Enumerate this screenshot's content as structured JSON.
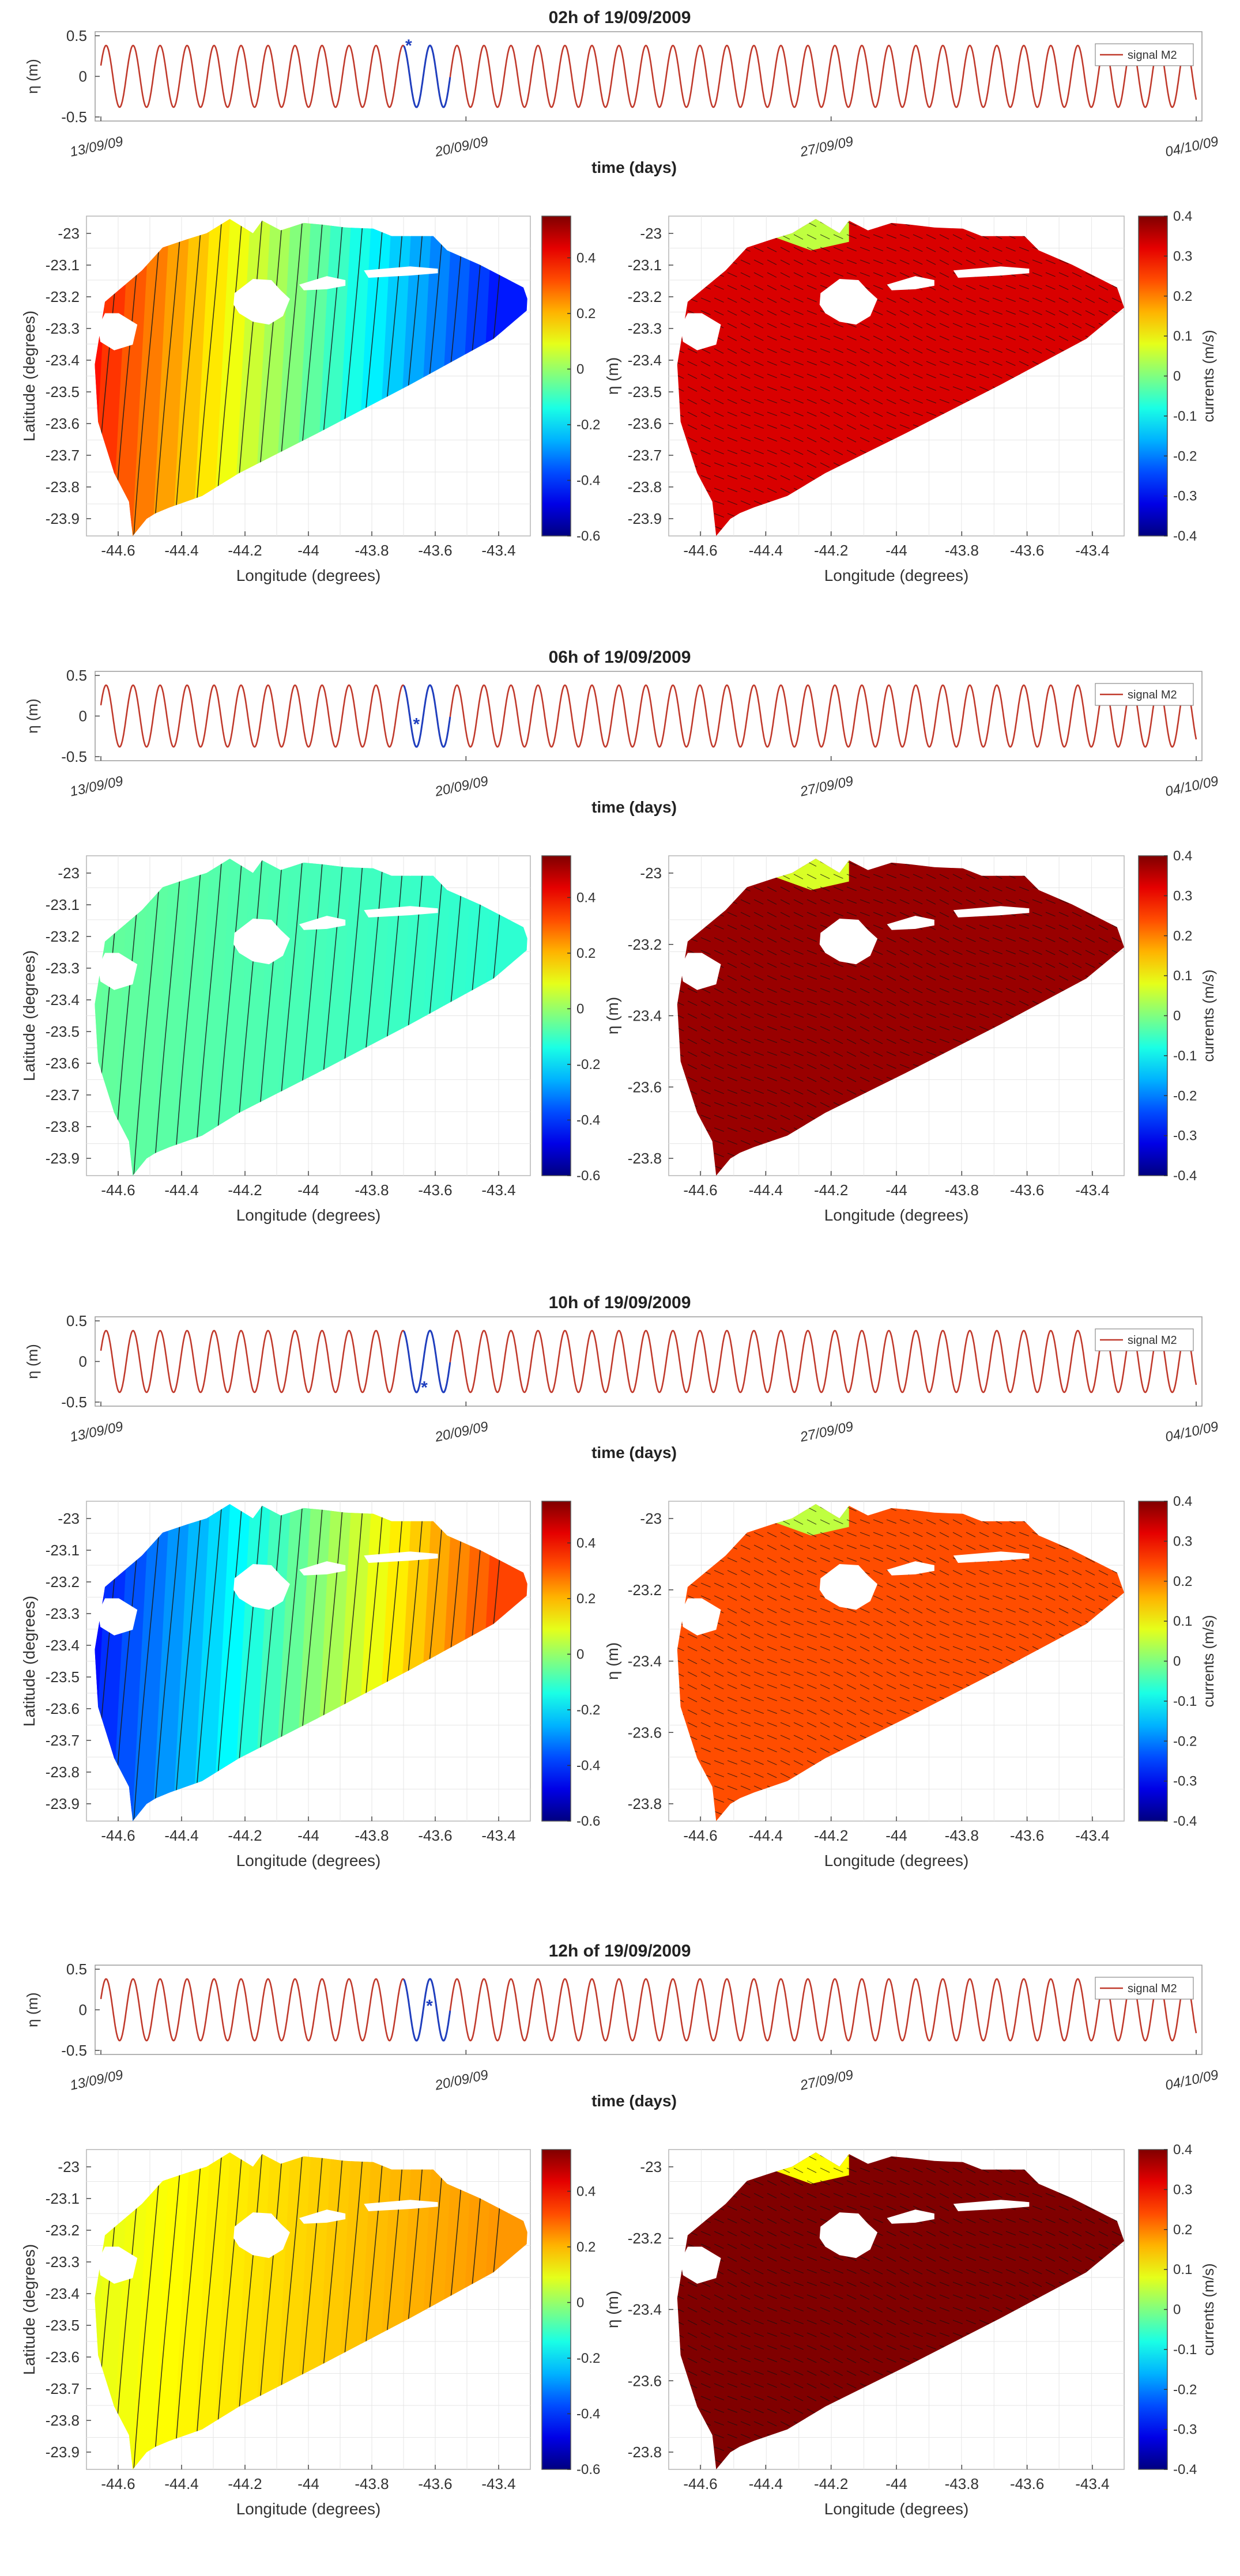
{
  "chart_data": [
    {
      "type": "line",
      "title": "02h of 19/09/2009",
      "ylabel": "η (m)",
      "xlabel": "time (days)",
      "yticks": [
        "0.5",
        "0",
        "-0.5"
      ],
      "ylim": [
        -0.55,
        0.55
      ],
      "xticks": [
        "13/09/09",
        "20/09/09",
        "27/09/09",
        "04/10/09"
      ],
      "xlim_days": [
        0,
        21
      ],
      "series": [
        {
          "name": "signal M2",
          "amplitude": 0.38,
          "period_days": 0.5175,
          "color": "#c0392b"
        }
      ],
      "highlight": {
        "start_days": 5.8,
        "end_days": 6.7,
        "color": "#1f3fbf"
      },
      "marker": {
        "time_days": 5.9,
        "value": 0.38
      },
      "colorbar_left": {
        "ticks": [
          "0.4",
          "0.2",
          "0",
          "-0.2",
          "-0.4",
          "-0.6"
        ],
        "range": [
          -0.6,
          0.55
        ]
      },
      "colorbar_right": {
        "ticks": [
          "0.4",
          "0.3",
          "0.2",
          "0.1",
          "0",
          "-0.1",
          "-0.2",
          "-0.3",
          "-0.4"
        ],
        "label": "currents (m/s)",
        "range": [
          -0.4,
          0.4
        ]
      },
      "map_left": {
        "xlabel": "Longitude (degrees)",
        "ylabel": "Latitude (degrees)",
        "xticks": [
          "-44.6",
          "-44.4",
          "-44.2",
          "-44",
          "-43.8",
          "-43.6",
          "-43.4"
        ],
        "yticks": [
          "-23",
          "-23.1",
          "-23.2",
          "-23.3",
          "-23.4",
          "-23.5",
          "-23.6",
          "-23.7",
          "-23.8",
          "-23.9"
        ],
        "elevation_west": 0.45,
        "elevation_east": -0.45
      },
      "map_right": {
        "xlabel": "Longitude (degrees)",
        "ylabel": "η (m)",
        "xticks": [
          "-44.6",
          "-44.4",
          "-44.2",
          "-44",
          "-43.8",
          "-43.6",
          "-43.4"
        ],
        "yticks": [
          "-23",
          "-23.1",
          "-23.2",
          "-23.3",
          "-23.4",
          "-23.5",
          "-23.6",
          "-23.7",
          "-23.8",
          "-23.9"
        ],
        "ocean_current": 0.33,
        "bay_current": 0.05
      }
    },
    {
      "type": "line",
      "title": "06h of 19/09/2009",
      "ylabel": "η (m)",
      "xlabel": "time (days)",
      "yticks": [
        "0.5",
        "0",
        "-0.5"
      ],
      "ylim": [
        -0.55,
        0.55
      ],
      "xticks": [
        "13/09/09",
        "20/09/09",
        "27/09/09",
        "04/10/09"
      ],
      "xlim_days": [
        0,
        21
      ],
      "series": [
        {
          "name": "signal M2",
          "amplitude": 0.38,
          "period_days": 0.5175,
          "color": "#c0392b"
        }
      ],
      "highlight": {
        "start_days": 5.8,
        "end_days": 6.7,
        "color": "#1f3fbf"
      },
      "marker": {
        "time_days": 6.05,
        "value": -0.1
      },
      "colorbar_left": {
        "ticks": [
          "0.4",
          "0.2",
          "0",
          "-0.2",
          "-0.4",
          "-0.6"
        ],
        "range": [
          -0.6,
          0.55
        ]
      },
      "colorbar_right": {
        "ticks": [
          "0.4",
          "0.3",
          "0.2",
          "0.1",
          "0",
          "-0.1",
          "-0.2",
          "-0.3",
          "-0.4"
        ],
        "label": "currents (m/s)",
        "range": [
          -0.4,
          0.4
        ]
      },
      "map_left": {
        "xlabel": "Longitude (degrees)",
        "ylabel": "Latitude (degrees)",
        "xticks": [
          "-44.6",
          "-44.4",
          "-44.2",
          "-44",
          "-43.8",
          "-43.6",
          "-43.4"
        ],
        "yticks": [
          "-23",
          "-23.1",
          "-23.2",
          "-23.3",
          "-23.4",
          "-23.5",
          "-23.6",
          "-23.7",
          "-23.8",
          "-23.9"
        ],
        "elevation_west": -0.05,
        "elevation_east": -0.12
      },
      "map_right": {
        "xlabel": "Longitude (degrees)",
        "ylabel": "η (m)",
        "xticks": [
          "-44.6",
          "-44.4",
          "-44.2",
          "-44",
          "-43.8",
          "-43.6",
          "-43.4"
        ],
        "yticks": [
          "-23",
          "-23.2",
          "-23.4",
          "-23.6",
          "-23.8"
        ],
        "ocean_current": 0.38,
        "bay_current": 0.07
      }
    },
    {
      "type": "line",
      "title": "10h of 19/09/2009",
      "ylabel": "η (m)",
      "xlabel": "time (days)",
      "yticks": [
        "0.5",
        "0",
        "-0.5"
      ],
      "ylim": [
        -0.55,
        0.55
      ],
      "xticks": [
        "13/09/09",
        "20/09/09",
        "27/09/09",
        "04/10/09"
      ],
      "xlim_days": [
        0,
        21
      ],
      "series": [
        {
          "name": "signal M2",
          "amplitude": 0.38,
          "period_days": 0.5175,
          "color": "#c0392b"
        }
      ],
      "highlight": {
        "start_days": 5.8,
        "end_days": 6.7,
        "color": "#1f3fbf"
      },
      "marker": {
        "time_days": 6.2,
        "value": -0.32
      },
      "colorbar_left": {
        "ticks": [
          "0.4",
          "0.2",
          "0",
          "-0.2",
          "-0.4",
          "-0.6"
        ],
        "range": [
          -0.6,
          0.55
        ]
      },
      "colorbar_right": {
        "ticks": [
          "0.4",
          "0.3",
          "0.2",
          "0.1",
          "0",
          "-0.1",
          "-0.2",
          "-0.3",
          "-0.4"
        ],
        "label": "currents (m/s)",
        "range": [
          -0.4,
          0.4
        ]
      },
      "map_left": {
        "xlabel": "Longitude (degrees)",
        "ylabel": "Latitude (degrees)",
        "xticks": [
          "-44.6",
          "-44.4",
          "-44.2",
          "-44",
          "-43.8",
          "-43.6",
          "-43.4"
        ],
        "yticks": [
          "-23",
          "-23.1",
          "-23.2",
          "-23.3",
          "-23.4",
          "-23.5",
          "-23.6",
          "-23.7",
          "-23.8",
          "-23.9"
        ],
        "elevation_west": -0.5,
        "elevation_east": 0.35
      },
      "map_right": {
        "xlabel": "Longitude (degrees)",
        "ylabel": "η (m)",
        "xticks": [
          "-44.6",
          "-44.4",
          "-44.2",
          "-44",
          "-43.8",
          "-43.6",
          "-43.4"
        ],
        "yticks": [
          "-23",
          "-23.2",
          "-23.4",
          "-23.6",
          "-23.8"
        ],
        "ocean_current": 0.24,
        "bay_current": 0.05
      }
    },
    {
      "type": "line",
      "title": "12h of 19/09/2009",
      "ylabel": "η (m)",
      "xlabel": "time (days)",
      "yticks": [
        "0.5",
        "0",
        "-0.5"
      ],
      "ylim": [
        -0.55,
        0.55
      ],
      "xticks": [
        "13/09/09",
        "20/09/09",
        "27/09/09",
        "04/10/09"
      ],
      "xlim_days": [
        0,
        21
      ],
      "series": [
        {
          "name": "signal M2",
          "amplitude": 0.38,
          "period_days": 0.5175,
          "color": "#c0392b"
        }
      ],
      "highlight": {
        "start_days": 5.8,
        "end_days": 6.7,
        "color": "#1f3fbf"
      },
      "marker": {
        "time_days": 6.3,
        "value": 0.05
      },
      "colorbar_left": {
        "ticks": [
          "0.4",
          "0.2",
          "0",
          "-0.2",
          "-0.4",
          "-0.6"
        ],
        "range": [
          -0.6,
          0.55
        ]
      },
      "colorbar_right": {
        "ticks": [
          "0.4",
          "0.3",
          "0.2",
          "0.1",
          "0",
          "-0.1",
          "-0.2",
          "-0.3",
          "-0.4"
        ],
        "label": "currents (m/s)",
        "range": [
          -0.4,
          0.4
        ]
      },
      "map_left": {
        "xlabel": "Longitude (degrees)",
        "ylabel": "Latitude (degrees)",
        "xticks": [
          "-44.6",
          "-44.4",
          "-44.2",
          "-44",
          "-43.8",
          "-43.6",
          "-43.4"
        ],
        "yticks": [
          "-23",
          "-23.1",
          "-23.2",
          "-23.3",
          "-23.4",
          "-23.5",
          "-23.6",
          "-23.7",
          "-23.8",
          "-23.9"
        ],
        "elevation_west": 0.08,
        "elevation_east": 0.24
      },
      "map_right": {
        "xlabel": "Longitude (degrees)",
        "ylabel": "η (m)",
        "xticks": [
          "-44.6",
          "-44.4",
          "-44.2",
          "-44",
          "-43.8",
          "-43.6",
          "-43.4"
        ],
        "yticks": [
          "-23",
          "-23.2",
          "-23.4",
          "-23.6",
          "-23.8"
        ],
        "ocean_current": 0.4,
        "bay_current": 0.1
      }
    }
  ]
}
